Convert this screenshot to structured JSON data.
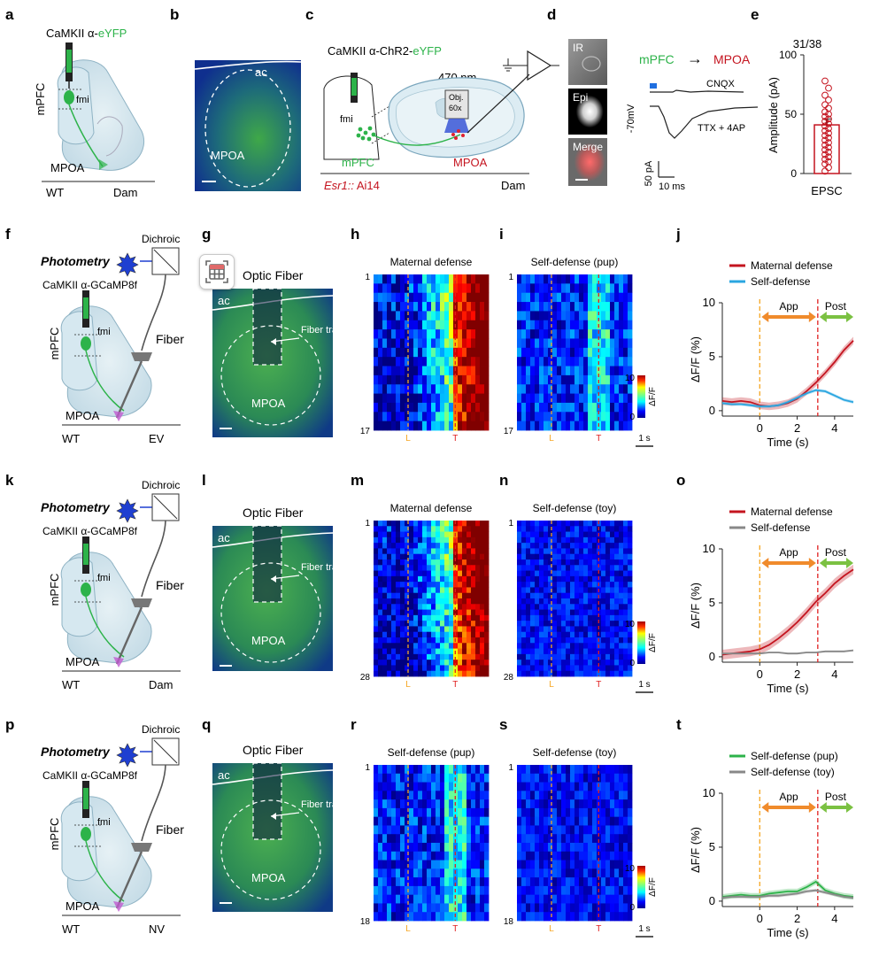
{
  "colors": {
    "green": "#2db34a",
    "red": "#c4141f",
    "orange": "#f08b2c",
    "lightgreen": "#7bc142",
    "cyan": "#2aa6e0",
    "gray": "#888888",
    "blue": "#1f3fd1",
    "yellowDash": "#f5a623"
  },
  "panels": {
    "a": "a",
    "b": "b",
    "c": "c",
    "d": "d",
    "e": "e",
    "f": "f",
    "g": "g",
    "h": "h",
    "i": "i",
    "j": "j",
    "k": "k",
    "l": "l",
    "m": "m",
    "n": "n",
    "o": "o",
    "p": "p",
    "q": "q",
    "r": "r",
    "s": "s",
    "t": "t"
  },
  "row1": {
    "a": {
      "virus_prefix": "CaMKII α-",
      "virus_fp": "eYFP",
      "mpfc": "mPFC",
      "fmi": "fmi",
      "mpoa": "MPOA",
      "left": "WT",
      "right": "Dam"
    },
    "b": {
      "ac": "ac",
      "mpoa": "MPOA"
    },
    "c": {
      "virus_prefix": "CaMKII α-ChR2-",
      "virus_fp": "eYFP",
      "wavelength": "470 nm",
      "obj": "Obj.",
      "mag": "60x",
      "fmi": "fmi",
      "mpfc": "mPFC",
      "mpoa": "MPOA",
      "genotype_a": "Esr1::",
      "genotype_b": " Ai14",
      "dam": "Dam"
    },
    "d": {
      "ir": "IR",
      "epi": "Epi",
      "merge": "Merge",
      "mpfc": "mPFC",
      "arrow": "→",
      "mpoa": "MPOA",
      "cnqx": "CNQX",
      "hold": "-70mV",
      "ttx": "TTX + 4AP",
      "scale_y": "50 pA",
      "scale_x": "10 ms"
    },
    "e": {
      "fraction": "31/38",
      "ylabel": "Amplitude (pA)",
      "xlabel": "EPSC",
      "ticks": [
        "100",
        "50",
        "0"
      ]
    }
  },
  "photometry_rows": [
    {
      "left_label": "f",
      "img_label": "g",
      "heat1_label": "h",
      "heat2_label": "i",
      "trace_label": "j",
      "photometry": "Photometry",
      "dichroic": "Dichroic",
      "virus": "CaMKII α-GCaMP8f",
      "mpfc": "mPFC",
      "fmi": "fmi",
      "fiber": "Fiber",
      "mpoa": "MPOA",
      "wt": "WT",
      "group": "EV",
      "optic_fiber": "Optic Fiber",
      "ac": "ac",
      "fiber_track": "Fiber track",
      "img_mpoa": "MPOA",
      "heat1_title": "Maternal defense",
      "heat2_title": "Self-defense (pup)",
      "n_first": "1",
      "n_last": "17",
      "mark_l": "L",
      "mark_t": "T",
      "cbar_max": "10",
      "cbar_min": "0",
      "cbar_unit": "ΔF/F",
      "scale_1s": "1 s"
    },
    {
      "left_label": "k",
      "img_label": "l",
      "heat1_label": "m",
      "heat2_label": "n",
      "trace_label": "o",
      "photometry": "Photometry",
      "dichroic": "Dichroic",
      "virus": "CaMKII α-GCaMP8f",
      "mpfc": "mPFC",
      "fmi": "fmi",
      "fiber": "Fiber",
      "mpoa": "MPOA",
      "wt": "WT",
      "group": "Dam",
      "optic_fiber": "Optic Fiber",
      "ac": "ac",
      "fiber_track": "Fiber track",
      "img_mpoa": "MPOA",
      "heat1_title": "Maternal defense",
      "heat2_title": "Self-defense (toy)",
      "n_first": "1",
      "n_last": "28",
      "mark_l": "L",
      "mark_t": "T",
      "cbar_max": "10",
      "cbar_min": "0",
      "cbar_unit": "ΔF/F",
      "scale_1s": "1 s"
    },
    {
      "left_label": "p",
      "img_label": "q",
      "heat1_label": "r",
      "heat2_label": "s",
      "trace_label": "t",
      "photometry": "Photometry",
      "dichroic": "Dichroic",
      "virus": "CaMKII α-GCaMP8f",
      "mpfc": "mPFC",
      "fmi": "fmi",
      "fiber": "Fiber",
      "mpoa": "MPOA",
      "wt": "WT",
      "group": "NV",
      "optic_fiber": "Optic Fiber",
      "ac": "ac",
      "fiber_track": "Fiber track",
      "img_mpoa": "MPOA",
      "heat1_title": "Self-defense (pup)",
      "heat2_title": "Self-defense (toy)",
      "n_first": "1",
      "n_last": "18",
      "mark_l": "L",
      "mark_t": "T",
      "cbar_max": "10",
      "cbar_min": "0",
      "cbar_unit": "ΔF/F",
      "scale_1s": "1 s"
    }
  ],
  "chart_data": [
    {
      "id": "e",
      "type": "bar",
      "title": "31/38",
      "xlabel": "EPSC",
      "ylabel": "Amplitude (pA)",
      "categories": [
        "EPSC"
      ],
      "values": [
        41
      ],
      "sem": 5,
      "ylim": [
        0,
        100
      ],
      "yticks": [
        0,
        50,
        100
      ],
      "points": [
        2,
        5,
        8,
        10,
        12,
        14,
        16,
        18,
        20,
        22,
        24,
        26,
        28,
        30,
        32,
        34,
        36,
        38,
        40,
        42,
        44,
        46,
        48,
        50,
        52,
        55,
        58,
        62,
        66,
        72,
        78
      ]
    },
    {
      "id": "j",
      "type": "line",
      "xlabel": "Time (s)",
      "ylabel": "ΔF/F (%)",
      "xlim": [
        -2,
        5
      ],
      "ylim": [
        -0.5,
        10
      ],
      "xticks": [
        0,
        2,
        4
      ],
      "yticks": [
        0,
        5,
        10
      ],
      "markers": {
        "approach_start": 0,
        "touch": 3.1
      },
      "periods": {
        "approach": "App",
        "post": "Post"
      },
      "x": [
        -2,
        -1.5,
        -1,
        -0.5,
        0,
        0.5,
        1,
        1.5,
        2,
        2.5,
        3,
        3.5,
        4,
        4.5,
        5
      ],
      "series": [
        {
          "name": "Maternal defense",
          "color": "#c4141f",
          "values": [
            0.9,
            0.8,
            0.9,
            0.8,
            0.5,
            0.4,
            0.5,
            0.7,
            1.1,
            1.8,
            2.6,
            3.5,
            4.5,
            5.6,
            6.5
          ],
          "sem": 0.35
        },
        {
          "name": "Self-defense",
          "color": "#2aa6e0",
          "values": [
            0.7,
            0.6,
            0.6,
            0.5,
            0.4,
            0.4,
            0.5,
            0.8,
            1.2,
            1.6,
            1.9,
            1.8,
            1.4,
            1.0,
            0.8
          ],
          "sem": 0.15
        }
      ]
    },
    {
      "id": "o",
      "type": "line",
      "xlabel": "Time (s)",
      "ylabel": "ΔF/F (%)",
      "xlim": [
        -2,
        5
      ],
      "ylim": [
        -0.5,
        10
      ],
      "xticks": [
        0,
        2,
        4
      ],
      "yticks": [
        0,
        5,
        10
      ],
      "markers": {
        "approach_start": 0,
        "touch": 3.1
      },
      "periods": {
        "approach": "App",
        "post": "Post"
      },
      "x": [
        -2,
        -1.5,
        -1,
        -0.5,
        0,
        0.5,
        1,
        1.5,
        2,
        2.5,
        3,
        3.5,
        4,
        4.5,
        5
      ],
      "series": [
        {
          "name": "Maternal defense",
          "color": "#c4141f",
          "values": [
            0.2,
            0.3,
            0.4,
            0.5,
            0.7,
            1.1,
            1.7,
            2.4,
            3.2,
            4.1,
            5.1,
            5.9,
            6.8,
            7.5,
            8.1
          ],
          "sem": 0.45
        },
        {
          "name": "Self-defense",
          "color": "#888888",
          "values": [
            0.3,
            0.3,
            0.3,
            0.3,
            0.3,
            0.4,
            0.4,
            0.3,
            0.3,
            0.4,
            0.4,
            0.5,
            0.5,
            0.5,
            0.6
          ],
          "sem": 0.08
        }
      ]
    },
    {
      "id": "t",
      "type": "line",
      "xlabel": "Time (s)",
      "ylabel": "ΔF/F (%)",
      "xlim": [
        -2,
        5
      ],
      "ylim": [
        -0.5,
        10
      ],
      "xticks": [
        0,
        2,
        4
      ],
      "yticks": [
        0,
        5,
        10
      ],
      "markers": {
        "approach_start": 0,
        "touch": 3.1
      },
      "periods": {
        "approach": "App",
        "post": "Post"
      },
      "x": [
        -2,
        -1.5,
        -1,
        -0.5,
        0,
        0.5,
        1,
        1.5,
        2,
        2.5,
        3,
        3.5,
        4,
        4.5,
        5
      ],
      "series": [
        {
          "name": "Self-defense (pup)",
          "color": "#2db34a",
          "values": [
            0.4,
            0.5,
            0.6,
            0.5,
            0.5,
            0.7,
            0.8,
            0.9,
            0.9,
            1.3,
            1.8,
            1.0,
            0.7,
            0.5,
            0.4
          ],
          "sem": 0.25
        },
        {
          "name": "Self-defense (toy)",
          "color": "#888888",
          "values": [
            0.3,
            0.4,
            0.4,
            0.4,
            0.4,
            0.5,
            0.5,
            0.6,
            0.7,
            0.9,
            1.0,
            0.8,
            0.6,
            0.4,
            0.3
          ],
          "sem": 0.15
        }
      ]
    },
    {
      "id": "heatmaps",
      "type": "heatmap",
      "colormap": "jet",
      "crange": [
        0,
        10
      ],
      "unit": "ΔF/F",
      "panels": [
        {
          "label": "h",
          "title": "Maternal defense",
          "rows": 17,
          "profile": "ramp-strong"
        },
        {
          "label": "i",
          "title": "Self-defense (pup)",
          "rows": 17,
          "profile": "weak-bump"
        },
        {
          "label": "m",
          "title": "Maternal defense",
          "rows": 28,
          "profile": "ramp-strong"
        },
        {
          "label": "n",
          "title": "Self-defense (toy)",
          "rows": 28,
          "profile": "flat"
        },
        {
          "label": "r",
          "title": "Self-defense (pup)",
          "rows": 18,
          "profile": "weak-bump"
        },
        {
          "label": "s",
          "title": "Self-defense (toy)",
          "rows": 18,
          "profile": "flat"
        }
      ]
    }
  ]
}
